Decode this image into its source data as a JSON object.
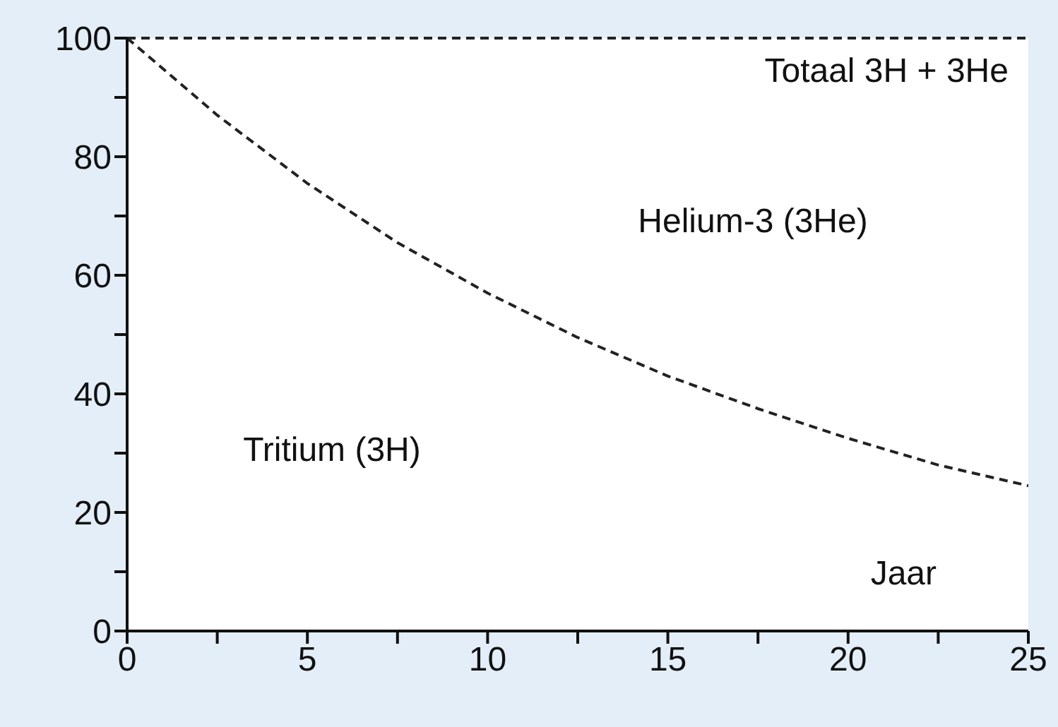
{
  "chart_data": {
    "type": "line",
    "xlabel": "Jaar",
    "x": [
      0,
      2.5,
      5,
      7.5,
      10,
      12.5,
      15,
      17.5,
      20,
      22.5,
      25
    ],
    "series": [
      {
        "color": "#222222",
        "values": [
          100,
          87,
          75.5,
          65.5,
          57,
          49.5,
          43,
          37.5,
          32.5,
          28,
          24.5
        ]
      }
    ],
    "xlim": [
      0,
      25
    ],
    "xticks": [
      0,
      {
        "value": 2.5,
        "label": null
      },
      5,
      {
        "value": 7.5,
        "label": null
      },
      10,
      {
        "value": 12.5,
        "label": null
      },
      15,
      {
        "value": 17.5,
        "label": null
      },
      20,
      {
        "value": 22.5,
        "label": null
      },
      25
    ],
    "ylim": [
      0,
      100
    ],
    "yticks": [
      0,
      {
        "value": 10,
        "label": null
      },
      20,
      {
        "value": 30,
        "label": null
      },
      40,
      {
        "value": 50,
        "label": null
      },
      60,
      {
        "value": 70,
        "label": null
      },
      80,
      {
        "value": 90,
        "label": null
      },
      100
    ],
    "ref_lines": [
      {
        "axis": "y",
        "value": 100,
        "label": "Totaal 3H + 3He",
        "color": "#222222",
        "line_style": "dashed"
      }
    ],
    "annotations": [
      "Helium-3 (3He)",
      "Tritium (3H)"
    ],
    "line_style": "dashed",
    "marker": "none",
    "grid": false,
    "legend": false
  }
}
